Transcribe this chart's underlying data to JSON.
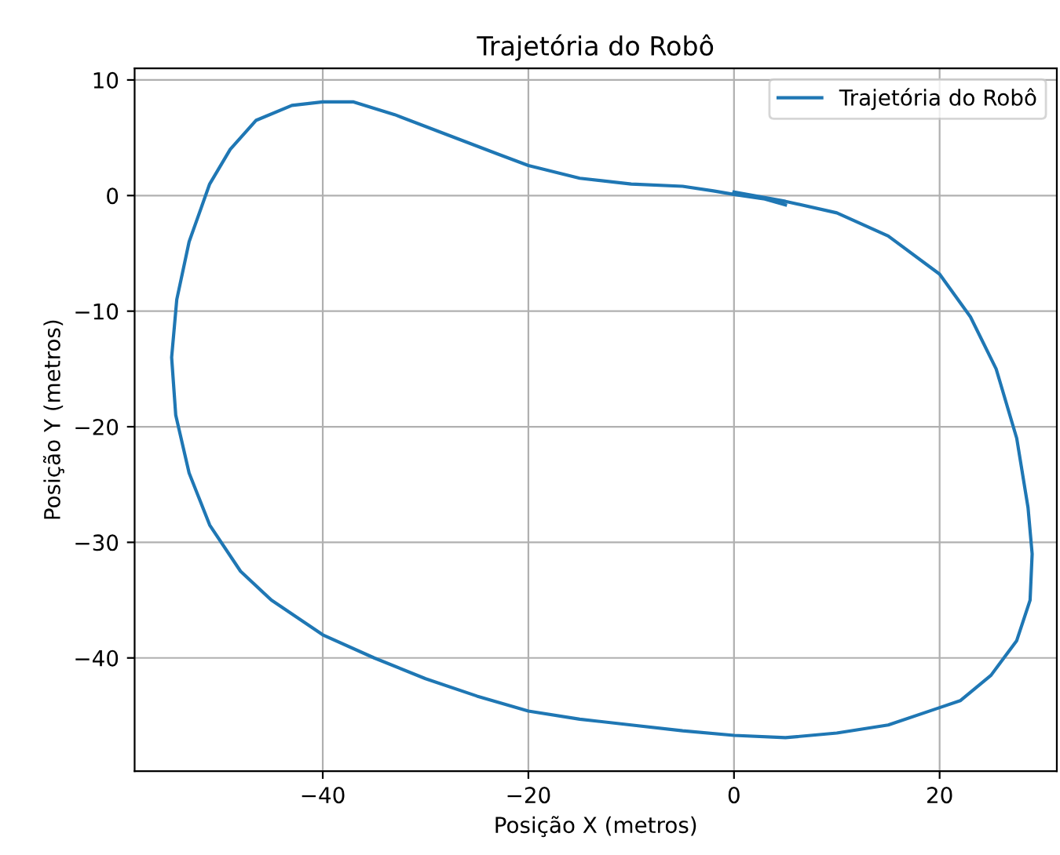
{
  "chart_data": {
    "type": "line",
    "title": "Trajetória do Robô",
    "xlabel": "Posição X (metros)",
    "ylabel": "Posição Y (metros)",
    "xlim": [
      -58.3,
      31.4
    ],
    "ylim": [
      -49.8,
      11
    ],
    "xticks": [
      {
        "value": -40,
        "label": "−40"
      },
      {
        "value": -20,
        "label": "−20"
      },
      0,
      20
    ],
    "yticks": [
      {
        "value": -40,
        "label": "−40"
      },
      {
        "value": -30,
        "label": "−30"
      },
      {
        "value": -20,
        "label": "−20"
      },
      {
        "value": -10,
        "label": "−10"
      },
      0,
      10
    ],
    "grid": true,
    "legend": "top right",
    "series": [
      {
        "name": "Trajetória do Robô",
        "color": "#1f77b4",
        "x": [
          0,
          5,
          10,
          15,
          20,
          23,
          25.5,
          27.5,
          28.6,
          29,
          28.8,
          27.5,
          25,
          22,
          20,
          15,
          10,
          5,
          0,
          -5,
          -10,
          -15,
          -20,
          -25,
          -30,
          -35,
          -40,
          -45,
          -48,
          -51,
          -53,
          -54.3,
          -54.7,
          -54.2,
          -53,
          -51,
          -49,
          -46.5,
          -43,
          -40,
          -37,
          -33,
          -28,
          -23,
          -20,
          -15,
          -10,
          -5,
          -2,
          0,
          3,
          5
        ],
        "values": [
          0.3,
          -0.5,
          -1.5,
          -3.5,
          -6.8,
          -10.5,
          -15,
          -21,
          -27,
          -31,
          -35,
          -38.5,
          -41.5,
          -43.7,
          -44.3,
          -45.8,
          -46.5,
          -46.9,
          -46.7,
          -46.3,
          -45.8,
          -45.3,
          -44.6,
          -43.3,
          -41.8,
          -40,
          -38,
          -35,
          -32.5,
          -28.5,
          -24,
          -19,
          -14,
          -9,
          -4,
          1,
          4,
          6.5,
          7.8,
          8.1,
          8.1,
          7,
          5.3,
          3.6,
          2.6,
          1.5,
          1,
          0.8,
          0.4,
          0.1,
          -0.3,
          -0.8
        ]
      }
    ]
  }
}
